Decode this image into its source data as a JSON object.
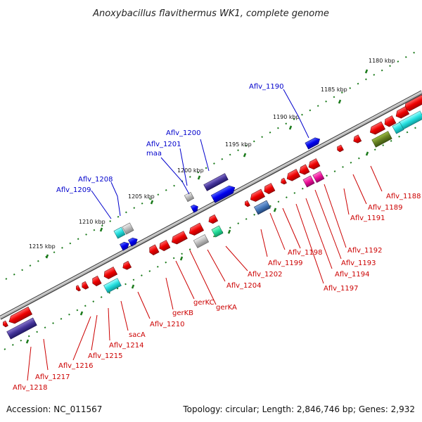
{
  "title": "Anoxybacillus flavithermus WK1, complete genome",
  "footer": {
    "accession": "Accession: NC_011567",
    "summary": "Topology: circular; Length: 2,846,746 bp; Genes: 2,932"
  },
  "ruler_labels": [
    "1180 kbp",
    "1185 kbp",
    "1190 kbp",
    "1195 kbp",
    "1200 kbp",
    "1205 kbp",
    "1210 kbp",
    "1215 kbp"
  ],
  "upper_gene_labels": [
    "Aflv_1190",
    "Aflv_1200",
    "Aflv_1201",
    "maa",
    "Aflv_1208",
    "Aflv_1209"
  ],
  "lower_gene_labels": [
    "Aflv_1188",
    "Aflv_1189",
    "Aflv_1191",
    "Aflv_1192",
    "Aflv_1193",
    "Aflv_1194",
    "Aflv_1197",
    "Aflv_1198",
    "Aflv_1199",
    "Aflv_1202",
    "Aflv_1204",
    "gerKA",
    "gerKC",
    "gerKB",
    "Aflv_1210",
    "sacA",
    "Aflv_1214",
    "Aflv_1215",
    "Aflv_1216",
    "Aflv_1217",
    "Aflv_1218"
  ],
  "colors": {
    "forward_gene": "#0000ee",
    "reverse_gene": "#ee0000",
    "backbone": "#888888",
    "ruler": "#1a7a1a",
    "upper_label": "#0000cc",
    "lower_label": "#cc0000"
  }
}
